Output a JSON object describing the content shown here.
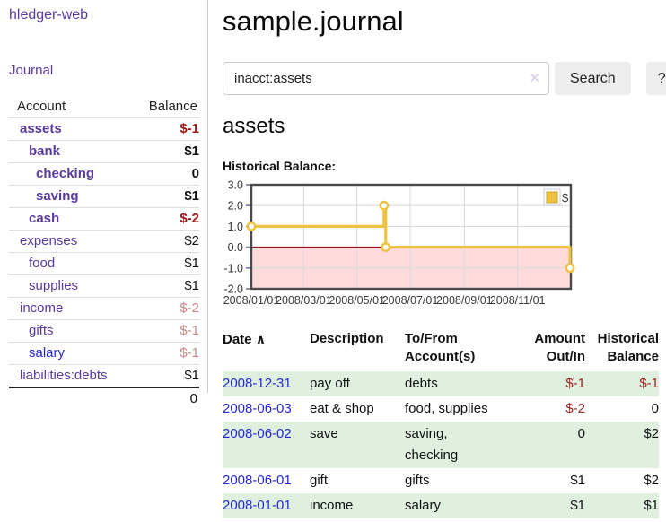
{
  "colors": {
    "link_purple": "#5b3a9e",
    "link_blue": "#2626d8",
    "negative_strong": "#9e1616",
    "negative_soft": "#c98787",
    "row_stripe_green": "#dff0df",
    "series_gold": "#edc240",
    "negative_region_pink": "#ffdbdb",
    "zero_line_red": "#8b1a1a",
    "button_gray": "#ededed"
  },
  "brand": "hledger-web",
  "sidebar": {
    "journal_label": "Journal",
    "accounts": {
      "headers": {
        "account": "Account",
        "balance": "Balance"
      },
      "rows": [
        {
          "name": "assets",
          "depth": 1,
          "balance": "$-1",
          "bold": true
        },
        {
          "name": "bank",
          "depth": 2,
          "balance": "$1",
          "bold": true
        },
        {
          "name": "checking",
          "depth": 3,
          "balance": "0",
          "bold": true
        },
        {
          "name": "saving",
          "depth": 3,
          "balance": "$1",
          "bold": true
        },
        {
          "name": "cash",
          "depth": 2,
          "balance": "$-2",
          "bold": true
        },
        {
          "name": "expenses",
          "depth": 1,
          "balance": "$2",
          "bold": false
        },
        {
          "name": "food",
          "depth": 2,
          "balance": "$1",
          "bold": false
        },
        {
          "name": "supplies",
          "depth": 2,
          "balance": "$1",
          "bold": false
        },
        {
          "name": "income",
          "depth": 1,
          "balance": "$-2",
          "bold": false
        },
        {
          "name": "gifts",
          "depth": 2,
          "balance": "$-1",
          "bold": false
        },
        {
          "name": "salary",
          "depth": 2,
          "balance": "$-1",
          "bold": false,
          "link_variant": "blue"
        },
        {
          "name": "liabilities:debts",
          "depth": 1,
          "balance": "$1",
          "bold": false
        }
      ],
      "total": "0"
    }
  },
  "header": {
    "title": "sample.journal"
  },
  "search": {
    "value": "inacct:assets",
    "clear_icon": "✕",
    "button_label": "Search",
    "help_label": "?"
  },
  "account_view": {
    "heading": "assets",
    "chart_heading": "Historical Balance:"
  },
  "chart_data": {
    "type": "line",
    "step": true,
    "title": "Historical Balance:",
    "series": [
      {
        "name": "$",
        "color": "#edc240",
        "points": [
          {
            "date": "2008-01-01",
            "value": 1
          },
          {
            "date": "2008-06-01",
            "value": 2
          },
          {
            "date": "2008-06-03",
            "value": 0
          },
          {
            "date": "2008-12-31",
            "value": -1
          }
        ]
      }
    ],
    "x_ticks": [
      {
        "date": "2008-01-01",
        "label": "2008/01/01"
      },
      {
        "date": "2008-03-01",
        "label": "2008/03/01"
      },
      {
        "date": "2008-05-01",
        "label": "2008/05/01"
      },
      {
        "date": "2008-07-01",
        "label": "2008/07/01"
      },
      {
        "date": "2008-09-01",
        "label": "2008/09/01"
      },
      {
        "date": "2008-11-01",
        "label": "2008/11/01"
      }
    ],
    "y_ticks": [
      "3.0",
      "2.0",
      "1.0",
      "0.0",
      "-1.0",
      "-2.0"
    ],
    "ylim": [
      -2,
      3
    ],
    "xlim": [
      "2008-01-01",
      "2009-01-01"
    ],
    "grid": true,
    "legend_position": "top-right",
    "negative_region_shaded": true
  },
  "register": {
    "headers": {
      "date": "Date",
      "sort_icon": "∧",
      "description": "Description",
      "to_from": "To/From Account(s)",
      "amount": "Amount Out/In",
      "balance": "Historical Balance"
    },
    "rows": [
      {
        "date": "2008-12-31",
        "description": "pay off",
        "accounts": "debts",
        "amount": "$-1",
        "balance": "$-1"
      },
      {
        "date": "2008-06-03",
        "description": "eat & shop",
        "accounts": "food, supplies",
        "amount": "$-2",
        "balance": "0"
      },
      {
        "date": "2008-06-02",
        "description": "save",
        "accounts": "saving, checking",
        "amount": "0",
        "balance": "$2"
      },
      {
        "date": "2008-06-01",
        "description": "gift",
        "accounts": "gifts",
        "amount": "$1",
        "balance": "$2"
      },
      {
        "date": "2008-01-01",
        "description": "income",
        "accounts": "salary",
        "amount": "$1",
        "balance": "$1"
      }
    ]
  }
}
